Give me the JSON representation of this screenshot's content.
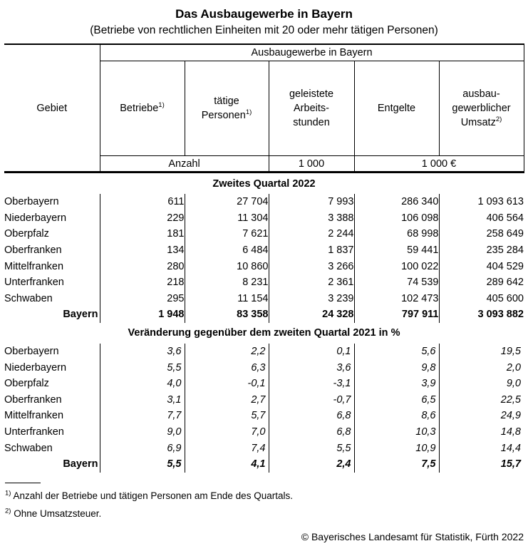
{
  "title": "Das Ausbaugewerbe in Bayern",
  "subtitle": "(Betriebe von rechtlichen Einheiten mit 20 oder mehr tätigen Personen)",
  "table": {
    "gebiet_label": "Gebiet",
    "span_header": "Ausbaugewerbe in Bayern",
    "col_headers": {
      "betriebe": {
        "line1": "Betriebe",
        "sup": "1)"
      },
      "personen": {
        "line1": "tätige",
        "line2": "Personen",
        "sup": "1)"
      },
      "stunden": {
        "line1": "geleistete",
        "line2": "Arbeits-",
        "line3": "stunden"
      },
      "entgelte": {
        "line1": "Entgelte"
      },
      "umsatz": {
        "line1": "ausbau-",
        "line2": "gewerblicher",
        "line3": "Umsatz",
        "sup": "2)"
      }
    },
    "units": {
      "anzahl": "Anzahl",
      "tausend": "1 000",
      "tausend_euro": "1 000 €"
    },
    "sections": [
      {
        "title": "Zweites Quartal 2022",
        "rows": [
          {
            "region": "Oberbayern",
            "values": [
              "611",
              "27 704",
              "7 993",
              "286 340",
              "1 093 613"
            ],
            "total": false
          },
          {
            "region": "Niederbayern",
            "values": [
              "229",
              "11 304",
              "3 388",
              "106 098",
              "406 564"
            ],
            "total": false
          },
          {
            "region": "Oberpfalz",
            "values": [
              "181",
              "7 621",
              "2 244",
              "68 998",
              "258 649"
            ],
            "total": false
          },
          {
            "region": "Oberfranken",
            "values": [
              "134",
              "6 484",
              "1 837",
              "59 441",
              "235 284"
            ],
            "total": false
          },
          {
            "region": "Mittelfranken",
            "values": [
              "280",
              "10 860",
              "3 266",
              "100 022",
              "404 529"
            ],
            "total": false
          },
          {
            "region": "Unterfranken",
            "values": [
              "218",
              "8 231",
              "2 361",
              "74 539",
              "289 642"
            ],
            "total": false
          },
          {
            "region": "Schwaben",
            "values": [
              "295",
              "11 154",
              "3 239",
              "102 473",
              "405 600"
            ],
            "total": false
          },
          {
            "region": "Bayern",
            "values": [
              "1 948",
              "83 358",
              "24 328",
              "797 911",
              "3 093 882"
            ],
            "total": true
          }
        ]
      },
      {
        "title": "Veränderung gegenüber dem zweiten Quartal 2021 in %",
        "rows": [
          {
            "region": "Oberbayern",
            "values": [
              "3,6",
              "2,2",
              "0,1",
              "5,6",
              "19,5"
            ],
            "total": false
          },
          {
            "region": "Niederbayern",
            "values": [
              "5,5",
              "6,3",
              "3,6",
              "9,8",
              "2,0"
            ],
            "total": false
          },
          {
            "region": "Oberpfalz",
            "values": [
              "4,0",
              "-0,1",
              "-3,1",
              "3,9",
              "9,0"
            ],
            "total": false
          },
          {
            "region": "Oberfranken",
            "values": [
              "3,1",
              "2,7",
              "-0,7",
              "6,5",
              "22,5"
            ],
            "total": false
          },
          {
            "region": "Mittelfranken",
            "values": [
              "7,7",
              "5,7",
              "6,8",
              "8,6",
              "24,9"
            ],
            "total": false
          },
          {
            "region": "Unterfranken",
            "values": [
              "9,0",
              "7,0",
              "6,8",
              "10,3",
              "14,8"
            ],
            "total": false
          },
          {
            "region": "Schwaben",
            "values": [
              "6,9",
              "7,4",
              "5,5",
              "10,9",
              "14,4"
            ],
            "total": false
          },
          {
            "region": "Bayern",
            "values": [
              "5,5",
              "4,1",
              "2,4",
              "7,5",
              "15,7"
            ],
            "total": true
          }
        ]
      }
    ]
  },
  "footnotes": [
    {
      "sup": "1)",
      "text": "Anzahl der Betriebe und tätigen Personen am Ende des Quartals."
    },
    {
      "sup": "2)",
      "text": "Ohne Umsatzsteuer."
    }
  ],
  "copyright": "© Bayerisches Landesamt für Statistik, Fürth 2022"
}
